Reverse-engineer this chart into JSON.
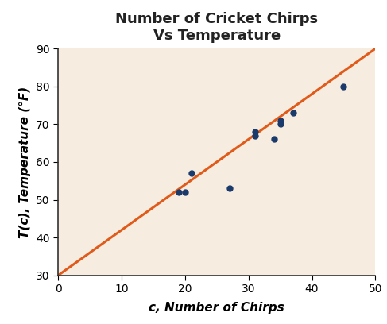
{
  "title": "Number of Cricket Chirps\nVs Temperature",
  "xlabel": "c, Number of Chirps",
  "ylabel": "T(c), Temperature (°F)",
  "scatter_x": [
    19,
    20,
    21,
    27,
    31,
    31,
    34,
    35,
    35,
    37,
    45
  ],
  "scatter_y": [
    52,
    52,
    57,
    53,
    67,
    68,
    66,
    71,
    70,
    73,
    80
  ],
  "scatter_color": "#1a3a6b",
  "scatter_size": 25,
  "line_x": [
    0,
    50
  ],
  "line_y": [
    30,
    90
  ],
  "line_color": "#e05a1a",
  "line_width": 2.2,
  "bg_color": "#f7ece0",
  "xlim": [
    0,
    50
  ],
  "ylim": [
    30,
    90
  ],
  "xticks": [
    0,
    10,
    20,
    30,
    40,
    50
  ],
  "yticks": [
    30,
    40,
    50,
    60,
    70,
    80,
    90
  ],
  "title_fontsize": 13,
  "label_fontsize": 11,
  "tick_fontsize": 10
}
